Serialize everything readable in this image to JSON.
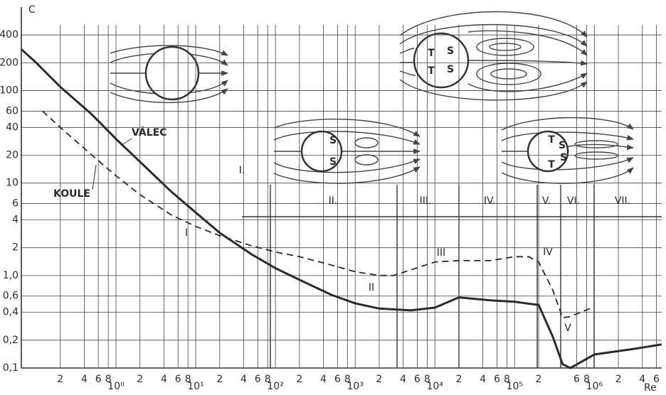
{
  "chart_data": {
    "type": "line",
    "x_label": "Re",
    "y_label": "C",
    "log_x": true,
    "log_y": true,
    "grid": true,
    "xlim": [
      0.065,
      7000000
    ],
    "ylim": [
      0.1,
      800
    ],
    "xticks": [
      {
        "value": 0.2,
        "label": "2"
      },
      {
        "value": 0.4,
        "label": "4"
      },
      {
        "value": 0.6,
        "label": "6"
      },
      {
        "value": 0.8,
        "label": "8"
      },
      {
        "value": 1,
        "label": "10⁰"
      },
      2,
      4,
      6,
      8,
      {
        "value": 10,
        "label": "10¹"
      },
      {
        "value": 20,
        "label": "2"
      },
      {
        "value": 40,
        "label": "4"
      },
      {
        "value": 60,
        "label": "6"
      },
      {
        "value": 80,
        "label": "8"
      },
      {
        "value": 100,
        "label": "10²"
      },
      {
        "value": 200,
        "label": "2"
      },
      {
        "value": 400,
        "label": "4"
      },
      {
        "value": 600,
        "label": "6"
      },
      {
        "value": 800,
        "label": "8"
      },
      {
        "value": 1000,
        "label": "10³"
      },
      {
        "value": 2000,
        "label": "2"
      },
      {
        "value": 4000,
        "label": "4"
      },
      {
        "value": 6000,
        "label": "6"
      },
      {
        "value": 8000,
        "label": "8"
      },
      {
        "value": 10000,
        "label": "10⁴"
      },
      {
        "value": 20000,
        "label": "2"
      },
      {
        "value": 40000,
        "label": "4"
      },
      {
        "value": 60000,
        "label": "6"
      },
      {
        "value": 80000,
        "label": "8"
      },
      {
        "value": 100000,
        "label": "10⁵"
      },
      {
        "value": 200000,
        "label": "2"
      },
      {
        "value": 600000,
        "label": "6"
      },
      {
        "value": 800000,
        "label": "8"
      },
      {
        "value": 1000000,
        "label": "10⁶"
      },
      {
        "value": 2000000,
        "label": "2"
      },
      {
        "value": 4000000,
        "label": "4"
      },
      {
        "value": 6000000,
        "label": "6"
      }
    ],
    "yticks": [
      {
        "value": 0.1,
        "label": "0,1"
      },
      {
        "value": 0.2,
        "label": "0,2"
      },
      {
        "value": 0.4,
        "label": "0,4"
      },
      {
        "value": 0.6,
        "label": "0,6"
      },
      {
        "value": 1,
        "label": "1,0"
      },
      2,
      4,
      6,
      10,
      20,
      40,
      60,
      100,
      200,
      400
    ],
    "series": [
      {
        "name": "VÁLEC",
        "color": "#2b2b2b",
        "style": "solid",
        "x": [
          0.065,
          0.1,
          0.2,
          0.5,
          1,
          2,
          5,
          10,
          20,
          50,
          100,
          200,
          500,
          1000,
          2000,
          5000,
          10000,
          20000,
          50000,
          100000,
          200000,
          300000,
          400000,
          500000,
          1000000,
          3000000,
          7000000
        ],
        "values": [
          280,
          200,
          110,
          55,
          30,
          17,
          8,
          4.8,
          2.9,
          1.7,
          1.2,
          0.9,
          0.62,
          0.5,
          0.44,
          0.42,
          0.45,
          0.58,
          0.54,
          0.52,
          0.48,
          0.22,
          0.11,
          0.1,
          0.14,
          0.16,
          0.18
        ]
      },
      {
        "name": "KOULE",
        "color": "#2b2b2b",
        "style": "dashed",
        "x": [
          0.12,
          0.2,
          0.5,
          1,
          2,
          5,
          10,
          20,
          50,
          100,
          200,
          500,
          1000,
          2000,
          3000,
          5000,
          10000,
          20000,
          50000,
          100000,
          150000,
          200000,
          300000,
          400000,
          500000,
          1000000
        ],
        "values": [
          60,
          40,
          20,
          12,
          7.5,
          4.5,
          3.4,
          2.7,
          2.1,
          1.8,
          1.6,
          1.3,
          1.1,
          1.0,
          1.0,
          1.15,
          1.4,
          1.45,
          1.45,
          1.6,
          1.6,
          1.4,
          0.7,
          0.35,
          0.36,
          0.46
        ]
      }
    ],
    "region_labels": [
      "I.",
      "II.",
      "III.",
      "IV.",
      "V.",
      "VI.",
      "VII."
    ],
    "curve_markers": [
      "I",
      "II",
      "III",
      "IV",
      "V"
    ],
    "diagram_letters": [
      "S",
      "S",
      "T",
      "S",
      "T",
      "S",
      "T",
      "S",
      "S",
      "T"
    ]
  }
}
